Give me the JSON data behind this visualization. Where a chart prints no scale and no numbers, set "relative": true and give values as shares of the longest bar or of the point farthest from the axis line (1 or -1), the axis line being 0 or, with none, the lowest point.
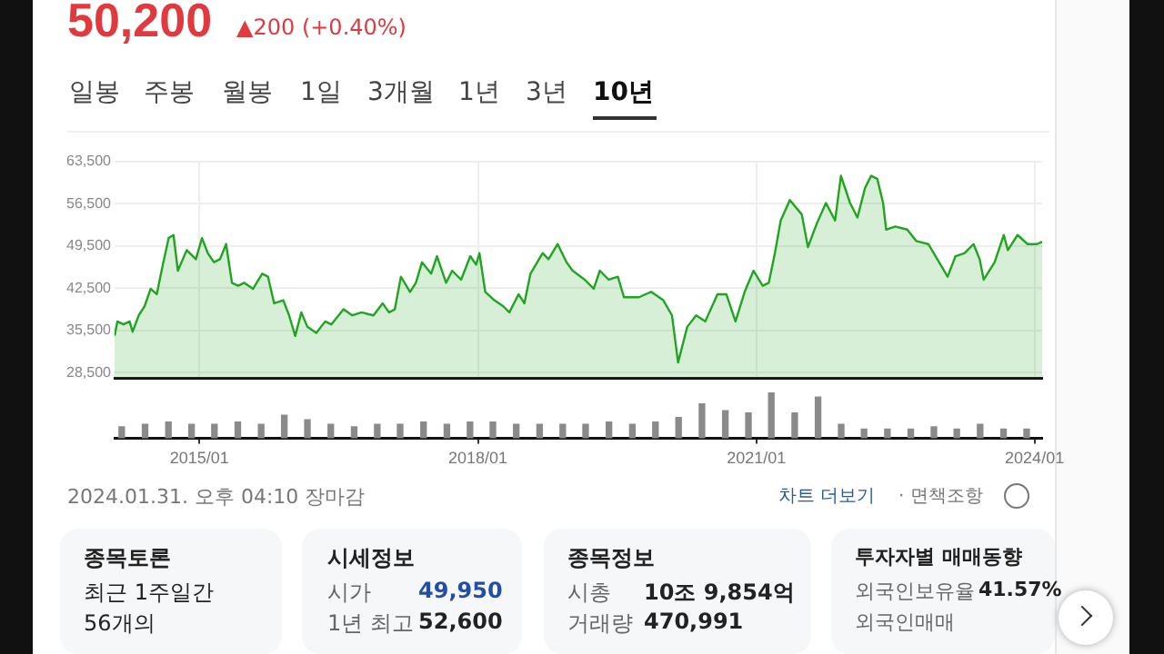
{
  "chart_data": [
    {
      "type": "area",
      "title": "50,200",
      "subtitle": "▲200 (+0.40%)",
      "color": "#1fa51f",
      "marker": "none",
      "grid": true,
      "tick_labels": "y",
      "annotations": [
        "일봉",
        "주봉",
        "월봉",
        "1일",
        "3개월",
        "1년",
        "3년",
        "10년",
        "2024.01.31. 오후 04:10 장마감",
        "차트 더보기",
        "· 면책조항",
        "종목토론",
        "최근 1주일간",
        "56개의",
        "시세정보",
        "시가",
        "49,950",
        "1년 최고",
        "52,600",
        "종목정보",
        "시총",
        "10조 9,854억",
        "거래량",
        "470,991",
        "투자자별 매매동향",
        "외국인보유율",
        "41.57%",
        "외국인매매"
      ],
      "xlim": [
        "2014-02-01",
        "2024-01-31"
      ],
      "xticks": [
        {
          "value": "2015-01-01",
          "label": null
        },
        {
          "value": "2018-01-01",
          "label": null
        },
        {
          "value": "2021-01-01",
          "label": null
        },
        {
          "value": "2024-01-01",
          "label": null
        }
      ],
      "ylim": [
        27600,
        63500
      ],
      "yticks": [
        {
          "value": 28500,
          "label": "28,500"
        },
        {
          "value": 35500,
          "label": "35,500"
        },
        {
          "value": 42500,
          "label": "42,500"
        },
        {
          "value": 49500,
          "label": "49,500"
        },
        {
          "value": 56500,
          "label": "56,500"
        },
        {
          "value": 63500,
          "label": "63,500"
        }
      ],
      "x": [
        "2014-02-01",
        "2014-02-12",
        "2014-03-08",
        "2014-04-01",
        "2014-04-13",
        "2014-05-07",
        "2014-05-30",
        "2014-06-23",
        "2014-07-17",
        "2014-08-10",
        "2014-09-02",
        "2014-09-21",
        "2014-10-08",
        "2014-11-12",
        "2014-12-18",
        "2015-01-11",
        "2015-02-03",
        "2015-02-27",
        "2015-03-23",
        "2015-04-16",
        "2015-05-09",
        "2015-06-02",
        "2015-06-26",
        "2015-07-31",
        "2015-09-05",
        "2015-09-28",
        "2015-10-22",
        "2015-11-27",
        "2015-12-20",
        "2016-01-13",
        "2016-02-06",
        "2016-03-01",
        "2016-04-05",
        "2016-05-10",
        "2016-06-03",
        "2016-07-21",
        "2016-08-25",
        "2016-09-30",
        "2016-11-16",
        "2016-12-22",
        "2017-01-16",
        "2017-02-08",
        "2017-03-04",
        "2017-04-09",
        "2017-05-02",
        "2017-05-26",
        "2017-07-01",
        "2017-07-24",
        "2017-08-29",
        "2017-09-22",
        "2017-10-27",
        "2017-12-02",
        "2017-12-25",
        "2018-01-07",
        "2018-01-30",
        "2018-03-07",
        "2018-04-11",
        "2018-05-05",
        "2018-06-10",
        "2018-07-03",
        "2018-07-27",
        "2018-09-13",
        "2018-10-06",
        "2018-11-11",
        "2018-12-16",
        "2019-01-09",
        "2019-02-26",
        "2019-04-02",
        "2019-04-26",
        "2019-05-31",
        "2019-07-06",
        "2019-07-30",
        "2019-09-03",
        "2019-09-27",
        "2019-11-14",
        "2020-01-01",
        "2020-02-04",
        "2020-02-28",
        "2020-04-04",
        "2020-05-09",
        "2020-06-14",
        "2020-08-01",
        "2020-09-05",
        "2020-10-11",
        "2020-11-16",
        "2020-12-21",
        "2021-01-26",
        "2021-02-19",
        "2021-03-15",
        "2021-04-07",
        "2021-05-13",
        "2021-06-29",
        "2021-07-23",
        "2021-08-27",
        "2021-10-02",
        "2021-11-07",
        "2021-11-30",
        "2022-01-05",
        "2022-02-03",
        "2022-03-05",
        "2022-03-29",
        "2022-04-22",
        "2022-05-15",
        "2022-05-27",
        "2022-07-02",
        "2022-08-18",
        "2022-09-23",
        "2022-11-09",
        "2022-12-27",
        "2023-01-24",
        "2023-02-24",
        "2023-04-01",
        "2023-05-06",
        "2023-05-30",
        "2023-06-15",
        "2023-07-28",
        "2023-09-02",
        "2023-09-18",
        "2023-10-26",
        "2023-12-05",
        "2024-01-10",
        "2024-01-31"
      ],
      "values": [
        34600,
        37000,
        36500,
        37000,
        35300,
        38000,
        39500,
        42400,
        41500,
        46400,
        50800,
        51300,
        45400,
        48800,
        47300,
        50800,
        48300,
        46800,
        47300,
        49800,
        43400,
        42900,
        43400,
        42400,
        44900,
        44400,
        40000,
        40500,
        38000,
        34600,
        38500,
        36100,
        35100,
        37000,
        36500,
        39000,
        38000,
        38500,
        38000,
        40000,
        38500,
        39000,
        44400,
        41900,
        43400,
        46800,
        44900,
        47800,
        43400,
        45400,
        43900,
        47800,
        46400,
        48300,
        41900,
        40500,
        39500,
        38500,
        41500,
        40000,
        44900,
        48300,
        47300,
        49800,
        46800,
        45400,
        43900,
        42400,
        45400,
        43900,
        44400,
        41000,
        41000,
        41000,
        41900,
        40500,
        38000,
        30200,
        36100,
        38000,
        37000,
        41500,
        41500,
        37000,
        41900,
        45400,
        42900,
        43400,
        48300,
        53700,
        57100,
        54700,
        49300,
        53200,
        56600,
        53700,
        61100,
        56600,
        54200,
        59100,
        61100,
        60600,
        56600,
        52200,
        52700,
        52200,
        50300,
        49800,
        46400,
        44400,
        47800,
        48300,
        49800,
        47300,
        43900,
        46800,
        51300,
        48800,
        51300,
        49800,
        49800,
        50200
      ]
    },
    {
      "type": "bar",
      "relative": true,
      "color": "#8a8a8a",
      "tick_labels": "x",
      "xlim": [
        "2014-02-01",
        "2024-01-31"
      ],
      "xticks": [
        {
          "value": "2015-01-01",
          "label": "2015/01"
        },
        {
          "value": "2018-01-01",
          "label": "2018/01"
        },
        {
          "value": "2021-01-01",
          "label": "2021/01"
        },
        {
          "value": "2024-01-01",
          "label": "2024/01"
        }
      ],
      "x": [
        "2014-03-01",
        "2014-06-01",
        "2014-09-01",
        "2014-12-01",
        "2015-03-01",
        "2015-06-01",
        "2015-09-01",
        "2015-12-01",
        "2016-03-01",
        "2016-06-01",
        "2016-09-01",
        "2016-12-01",
        "2017-03-01",
        "2017-06-01",
        "2017-09-01",
        "2017-12-01",
        "2018-03-01",
        "2018-06-01",
        "2018-09-01",
        "2018-12-01",
        "2019-03-01",
        "2019-06-01",
        "2019-09-01",
        "2019-12-01",
        "2020-03-01",
        "2020-06-01",
        "2020-09-01",
        "2020-12-01",
        "2021-03-01",
        "2021-06-01",
        "2021-09-01",
        "2021-12-01",
        "2022-03-01",
        "2022-06-01",
        "2022-09-01",
        "2022-12-01",
        "2023-03-01",
        "2023-06-01",
        "2023-09-01",
        "2023-12-01"
      ],
      "values": [
        0.25,
        0.3,
        0.35,
        0.3,
        0.3,
        0.35,
        0.3,
        0.5,
        0.4,
        0.3,
        0.25,
        0.3,
        0.3,
        0.35,
        0.3,
        0.35,
        0.35,
        0.3,
        0.3,
        0.3,
        0.3,
        0.35,
        0.3,
        0.35,
        0.45,
        0.75,
        0.6,
        0.55,
        1,
        0.55,
        0.9,
        0.3,
        0.2,
        0.2,
        0.2,
        0.25,
        0.2,
        0.3,
        0.2,
        0.2
      ]
    }
  ]
}
